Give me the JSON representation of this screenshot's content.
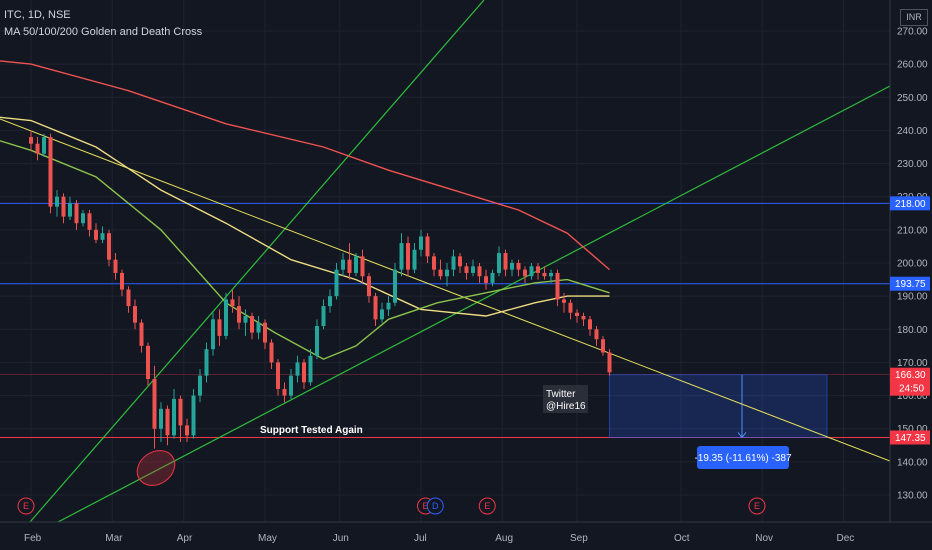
{
  "header": {
    "symbol_line": "ITC, 1D, NSE",
    "indicator_line": "MA 50/100/200 Golden and Death Cross",
    "currency": "INR"
  },
  "chart_data": {
    "type": "candlestick",
    "x_months": [
      "Feb",
      "Mar",
      "Apr",
      "May",
      "Jun",
      "Jul",
      "Aug",
      "Sep",
      "Oct",
      "Nov",
      "Dec"
    ],
    "y_ticks": [
      130,
      140,
      150,
      160,
      170,
      180,
      190,
      200,
      210,
      220,
      230,
      240,
      250,
      260,
      270
    ],
    "ylim": [
      124,
      277
    ],
    "ohlc_series": [
      {
        "d": 0,
        "o": 238,
        "h": 240,
        "l": 234,
        "c": 236
      },
      {
        "d": 2,
        "o": 236,
        "h": 238,
        "l": 231,
        "c": 233
      },
      {
        "d": 4,
        "o": 233,
        "h": 239,
        "l": 232,
        "c": 238
      },
      {
        "d": 6,
        "o": 238,
        "h": 239,
        "l": 215,
        "c": 217
      },
      {
        "d": 8,
        "o": 217,
        "h": 222,
        "l": 214,
        "c": 220
      },
      {
        "d": 10,
        "o": 220,
        "h": 221,
        "l": 212,
        "c": 214
      },
      {
        "d": 12,
        "o": 214,
        "h": 220,
        "l": 213,
        "c": 218
      },
      {
        "d": 14,
        "o": 218,
        "h": 219,
        "l": 210,
        "c": 212
      },
      {
        "d": 16,
        "o": 212,
        "h": 216,
        "l": 211,
        "c": 215
      },
      {
        "d": 18,
        "o": 215,
        "h": 216,
        "l": 208,
        "c": 210
      },
      {
        "d": 20,
        "o": 210,
        "h": 212,
        "l": 206,
        "c": 207
      },
      {
        "d": 22,
        "o": 207,
        "h": 211,
        "l": 206,
        "c": 209
      },
      {
        "d": 24,
        "o": 209,
        "h": 210,
        "l": 199,
        "c": 201
      },
      {
        "d": 26,
        "o": 201,
        "h": 203,
        "l": 195,
        "c": 197
      },
      {
        "d": 28,
        "o": 197,
        "h": 198,
        "l": 190,
        "c": 192
      },
      {
        "d": 30,
        "o": 192,
        "h": 193,
        "l": 185,
        "c": 187
      },
      {
        "d": 32,
        "o": 187,
        "h": 189,
        "l": 180,
        "c": 182
      },
      {
        "d": 34,
        "o": 182,
        "h": 183,
        "l": 173,
        "c": 175
      },
      {
        "d": 36,
        "o": 175,
        "h": 176,
        "l": 163,
        "c": 165
      },
      {
        "d": 38,
        "o": 165,
        "h": 169,
        "l": 144,
        "c": 150
      },
      {
        "d": 40,
        "o": 150,
        "h": 158,
        "l": 146,
        "c": 156
      },
      {
        "d": 42,
        "o": 156,
        "h": 157,
        "l": 145,
        "c": 148
      },
      {
        "d": 44,
        "o": 148,
        "h": 162,
        "l": 147,
        "c": 159
      },
      {
        "d": 46,
        "o": 159,
        "h": 160,
        "l": 146,
        "c": 151
      },
      {
        "d": 48,
        "o": 151,
        "h": 153,
        "l": 146,
        "c": 148
      },
      {
        "d": 50,
        "o": 148,
        "h": 162,
        "l": 147,
        "c": 160
      },
      {
        "d": 52,
        "o": 160,
        "h": 168,
        "l": 158,
        "c": 166
      },
      {
        "d": 54,
        "o": 166,
        "h": 176,
        "l": 164,
        "c": 174
      },
      {
        "d": 56,
        "o": 174,
        "h": 185,
        "l": 172,
        "c": 183
      },
      {
        "d": 58,
        "o": 183,
        "h": 186,
        "l": 175,
        "c": 178
      },
      {
        "d": 60,
        "o": 178,
        "h": 191,
        "l": 177,
        "c": 189
      },
      {
        "d": 62,
        "o": 189,
        "h": 192,
        "l": 185,
        "c": 187
      },
      {
        "d": 64,
        "o": 187,
        "h": 190,
        "l": 180,
        "c": 182
      },
      {
        "d": 66,
        "o": 182,
        "h": 186,
        "l": 178,
        "c": 184
      },
      {
        "d": 68,
        "o": 184,
        "h": 185,
        "l": 177,
        "c": 179
      },
      {
        "d": 70,
        "o": 179,
        "h": 184,
        "l": 177,
        "c": 182
      },
      {
        "d": 72,
        "o": 182,
        "h": 183,
        "l": 174,
        "c": 176
      },
      {
        "d": 74,
        "o": 176,
        "h": 177,
        "l": 168,
        "c": 170
      },
      {
        "d": 76,
        "o": 170,
        "h": 171,
        "l": 160,
        "c": 162
      },
      {
        "d": 78,
        "o": 162,
        "h": 164,
        "l": 158,
        "c": 160
      },
      {
        "d": 80,
        "o": 160,
        "h": 168,
        "l": 159,
        "c": 166
      },
      {
        "d": 82,
        "o": 166,
        "h": 172,
        "l": 164,
        "c": 170
      },
      {
        "d": 84,
        "o": 170,
        "h": 171,
        "l": 162,
        "c": 164
      },
      {
        "d": 86,
        "o": 164,
        "h": 174,
        "l": 163,
        "c": 172
      },
      {
        "d": 88,
        "o": 172,
        "h": 183,
        "l": 171,
        "c": 181
      },
      {
        "d": 90,
        "o": 181,
        "h": 189,
        "l": 180,
        "c": 187
      },
      {
        "d": 92,
        "o": 187,
        "h": 192,
        "l": 185,
        "c": 190
      },
      {
        "d": 94,
        "o": 190,
        "h": 200,
        "l": 189,
        "c": 198
      },
      {
        "d": 96,
        "o": 198,
        "h": 203,
        "l": 196,
        "c": 201
      },
      {
        "d": 98,
        "o": 201,
        "h": 206,
        "l": 195,
        "c": 197
      },
      {
        "d": 100,
        "o": 197,
        "h": 203,
        "l": 196,
        "c": 202
      },
      {
        "d": 102,
        "o": 202,
        "h": 204,
        "l": 194,
        "c": 196
      },
      {
        "d": 104,
        "o": 196,
        "h": 197,
        "l": 188,
        "c": 190
      },
      {
        "d": 106,
        "o": 190,
        "h": 191,
        "l": 181,
        "c": 183
      },
      {
        "d": 108,
        "o": 183,
        "h": 188,
        "l": 182,
        "c": 186
      },
      {
        "d": 110,
        "o": 186,
        "h": 190,
        "l": 184,
        "c": 188
      },
      {
        "d": 112,
        "o": 188,
        "h": 200,
        "l": 187,
        "c": 198
      },
      {
        "d": 114,
        "o": 198,
        "h": 209,
        "l": 196,
        "c": 206
      },
      {
        "d": 116,
        "o": 206,
        "h": 208,
        "l": 196,
        "c": 198
      },
      {
        "d": 118,
        "o": 198,
        "h": 206,
        "l": 197,
        "c": 204
      },
      {
        "d": 120,
        "o": 204,
        "h": 210,
        "l": 202,
        "c": 208
      },
      {
        "d": 122,
        "o": 208,
        "h": 209,
        "l": 200,
        "c": 202
      },
      {
        "d": 124,
        "o": 202,
        "h": 203,
        "l": 196,
        "c": 198
      },
      {
        "d": 126,
        "o": 198,
        "h": 201,
        "l": 195,
        "c": 196
      },
      {
        "d": 128,
        "o": 196,
        "h": 200,
        "l": 193,
        "c": 198
      },
      {
        "d": 130,
        "o": 198,
        "h": 204,
        "l": 196,
        "c": 202
      },
      {
        "d": 132,
        "o": 202,
        "h": 203,
        "l": 197,
        "c": 199
      },
      {
        "d": 134,
        "o": 199,
        "h": 200,
        "l": 195,
        "c": 197
      },
      {
        "d": 136,
        "o": 197,
        "h": 201,
        "l": 196,
        "c": 199
      },
      {
        "d": 138,
        "o": 199,
        "h": 200,
        "l": 194,
        "c": 196
      },
      {
        "d": 140,
        "o": 196,
        "h": 198,
        "l": 192,
        "c": 194
      },
      {
        "d": 142,
        "o": 194,
        "h": 198,
        "l": 193,
        "c": 197
      },
      {
        "d": 144,
        "o": 197,
        "h": 205,
        "l": 196,
        "c": 203
      },
      {
        "d": 146,
        "o": 203,
        "h": 204,
        "l": 196,
        "c": 198
      },
      {
        "d": 148,
        "o": 198,
        "h": 201,
        "l": 196,
        "c": 200
      },
      {
        "d": 150,
        "o": 200,
        "h": 201,
        "l": 196,
        "c": 198
      },
      {
        "d": 152,
        "o": 198,
        "h": 199,
        "l": 194,
        "c": 196
      },
      {
        "d": 154,
        "o": 196,
        "h": 200,
        "l": 195,
        "c": 199
      },
      {
        "d": 156,
        "o": 199,
        "h": 200,
        "l": 195,
        "c": 197
      },
      {
        "d": 158,
        "o": 197,
        "h": 199,
        "l": 195,
        "c": 196
      },
      {
        "d": 160,
        "o": 196,
        "h": 198,
        "l": 194,
        "c": 197
      },
      {
        "d": 162,
        "o": 197,
        "h": 198,
        "l": 187,
        "c": 189
      },
      {
        "d": 164,
        "o": 189,
        "h": 191,
        "l": 185,
        "c": 188
      },
      {
        "d": 166,
        "o": 188,
        "h": 189,
        "l": 183,
        "c": 185
      },
      {
        "d": 168,
        "o": 185,
        "h": 186,
        "l": 182,
        "c": 184
      },
      {
        "d": 170,
        "o": 184,
        "h": 185,
        "l": 181,
        "c": 183
      },
      {
        "d": 172,
        "o": 183,
        "h": 184,
        "l": 178,
        "c": 180
      },
      {
        "d": 174,
        "o": 180,
        "h": 181,
        "l": 175,
        "c": 177
      },
      {
        "d": 176,
        "o": 177,
        "h": 178,
        "l": 172,
        "c": 173
      },
      {
        "d": 178,
        "o": 173,
        "h": 174,
        "l": 166,
        "c": 167
      }
    ],
    "moving_averages": [
      {
        "period": "200",
        "color": "#ef5350",
        "points": [
          [
            -30,
            263
          ],
          [
            0,
            260
          ],
          [
            30,
            252
          ],
          [
            60,
            242
          ],
          [
            90,
            235
          ],
          [
            110,
            228
          ],
          [
            130,
            222
          ],
          [
            150,
            216
          ],
          [
            165,
            209
          ],
          [
            178,
            198
          ]
        ]
      },
      {
        "period": "100",
        "color": "#eedc82",
        "points": [
          [
            -30,
            246
          ],
          [
            0,
            243
          ],
          [
            20,
            235
          ],
          [
            40,
            222
          ],
          [
            60,
            212
          ],
          [
            80,
            201
          ],
          [
            100,
            195
          ],
          [
            120,
            186
          ],
          [
            140,
            184
          ],
          [
            155,
            188
          ],
          [
            165,
            190
          ],
          [
            178,
            190
          ]
        ]
      },
      {
        "period": "50",
        "color": "#8bc34a",
        "points": [
          [
            -30,
            243
          ],
          [
            0,
            234
          ],
          [
            20,
            226
          ],
          [
            40,
            210
          ],
          [
            60,
            188
          ],
          [
            75,
            179
          ],
          [
            90,
            171
          ],
          [
            100,
            175
          ],
          [
            110,
            183
          ],
          [
            125,
            188
          ],
          [
            140,
            191
          ],
          [
            155,
            194
          ],
          [
            165,
            195
          ],
          [
            178,
            191
          ]
        ]
      }
    ],
    "horizontal_levels": [
      {
        "value": 218,
        "label": "218.00",
        "color": "#2962ff"
      },
      {
        "value": 193.75,
        "label": "193.75",
        "color": "#2962ff"
      },
      {
        "value": 147.35,
        "label": "147.35",
        "color": "#f23645"
      }
    ],
    "price_marker": {
      "value": 166.3,
      "label": "166.30",
      "countdown": "24:50"
    },
    "annotations": {
      "support": "Support Tested Again",
      "watermark": [
        "Twitter",
        "@Hire16"
      ],
      "measure": "-19.35 (-11.61%) -387"
    },
    "events": [
      {
        "d": 0,
        "letter": "E",
        "kind": "earnings"
      },
      {
        "d": 122,
        "letter": "E",
        "kind": "earnings"
      },
      {
        "d": 125,
        "letter": "D",
        "kind": "dividend"
      },
      {
        "d": 141,
        "letter": "E",
        "kind": "earnings"
      },
      {
        "d": 224,
        "letter": "E",
        "kind": "earnings"
      }
    ]
  }
}
